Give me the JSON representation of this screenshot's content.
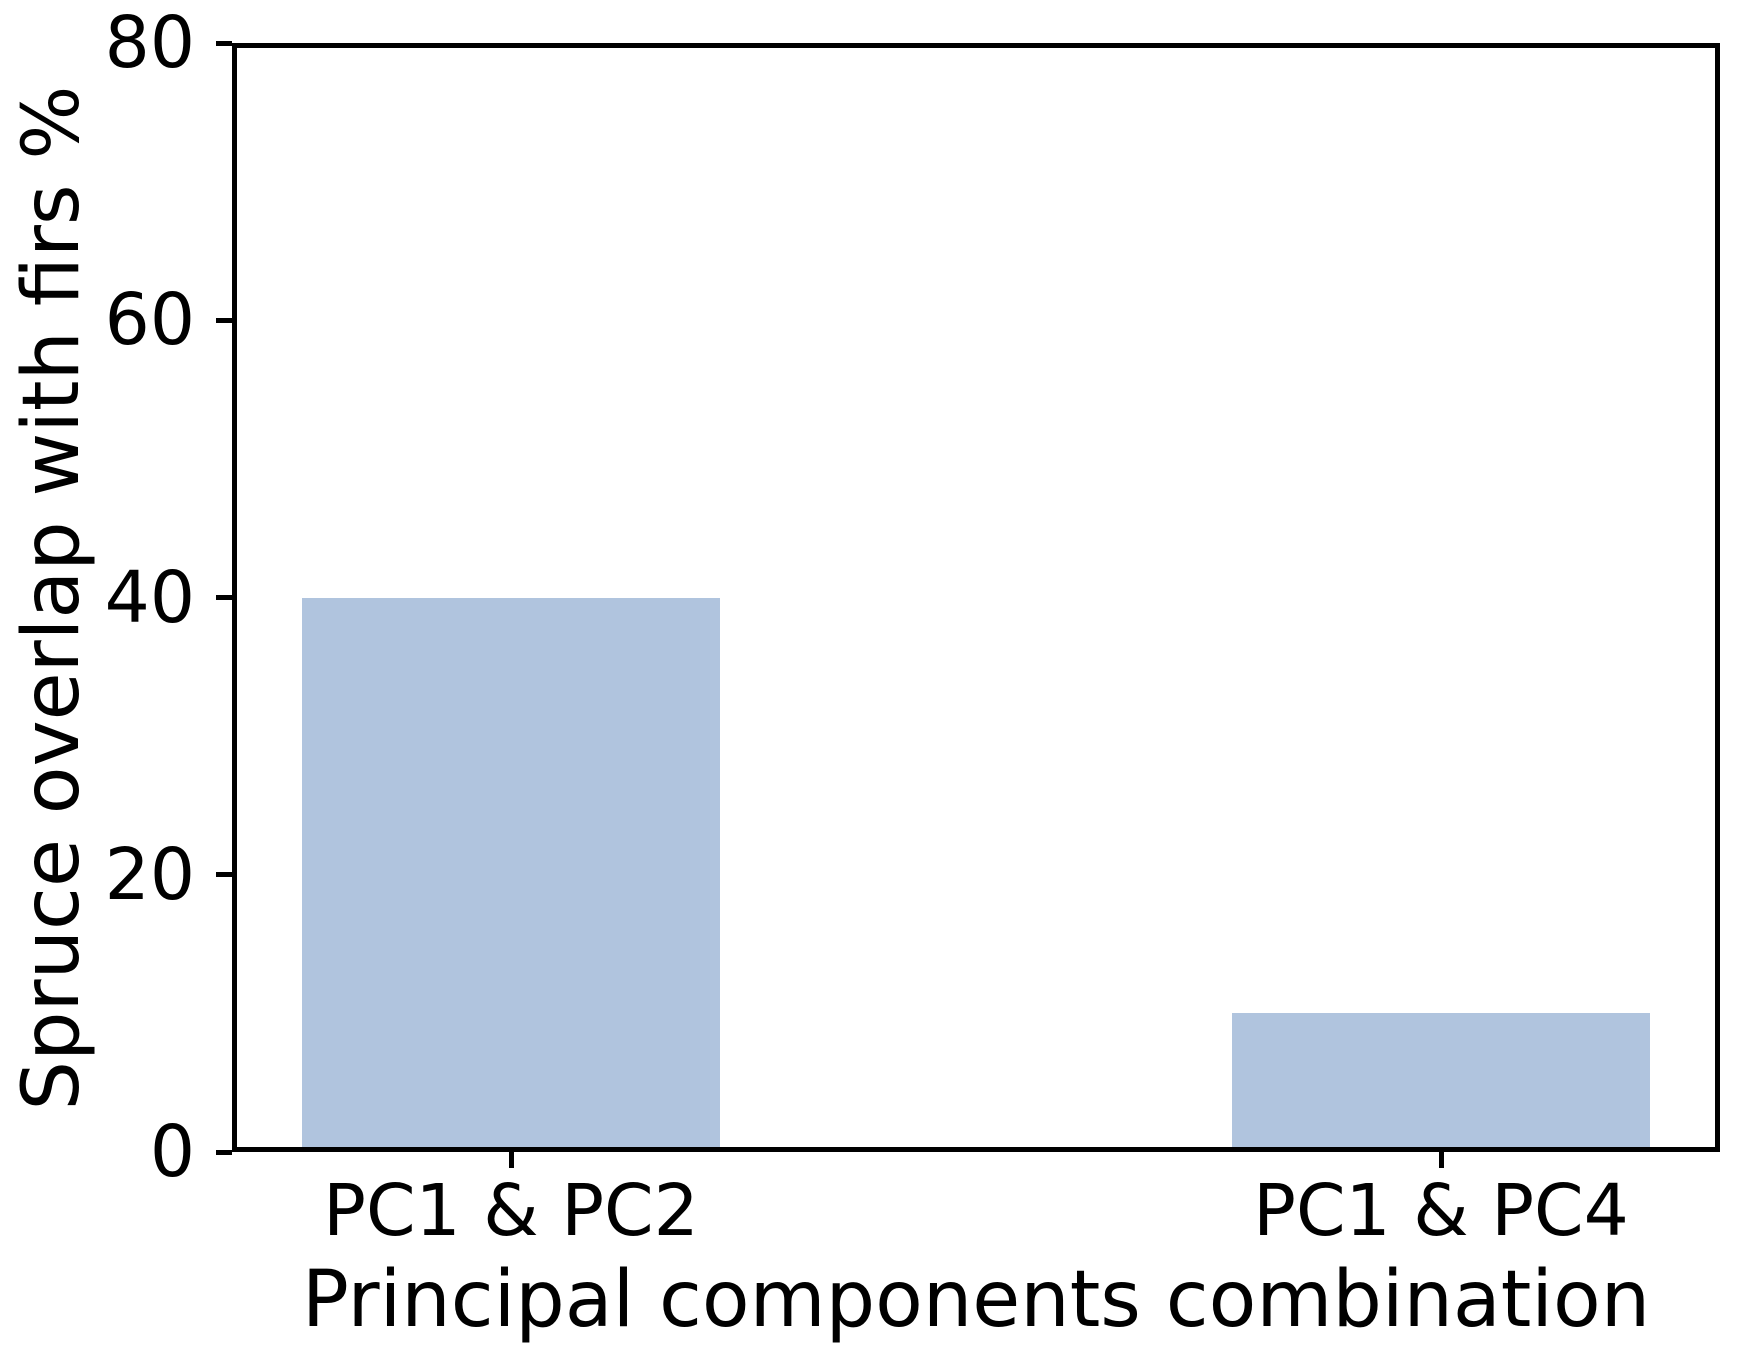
{
  "chart_data": {
    "type": "bar",
    "title": "",
    "categories": [
      "PC1 & PC2",
      "PC1 & PC4"
    ],
    "values": [
      40,
      10
    ],
    "xlabel": "Principal components combination",
    "ylabel": "Spruce overlap with firs %",
    "ylim": [
      0,
      80
    ],
    "yticks": [
      0,
      20,
      40,
      60,
      80
    ],
    "xlim": [
      -0.3,
      1.3
    ],
    "bar_width": 0.45,
    "bar_color": "#b0c4de",
    "axis_color": "#000000",
    "background": "#ffffff",
    "grid": false,
    "legend": "none"
  }
}
